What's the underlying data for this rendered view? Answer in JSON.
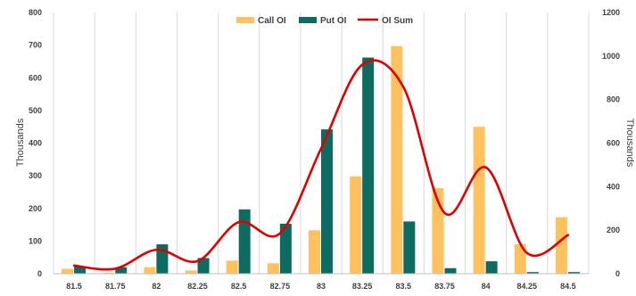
{
  "chart_data": {
    "type": "bar",
    "categories": [
      "81.5",
      "81.75",
      "82",
      "82.25",
      "82.5",
      "82.75",
      "83",
      "83.25",
      "83.5",
      "83.75",
      "84",
      "84.25",
      "84.5"
    ],
    "series": [
      {
        "name": "Call OI",
        "type": "bar",
        "axis": "left",
        "color": "#FFC25E",
        "values": [
          15,
          3,
          20,
          10,
          40,
          32,
          133,
          298,
          697,
          262,
          450,
          90,
          173
        ]
      },
      {
        "name": "Put OI",
        "type": "bar",
        "axis": "left",
        "color": "#0E6B62",
        "values": [
          22,
          20,
          90,
          48,
          197,
          153,
          442,
          662,
          160,
          17,
          38,
          5,
          5
        ]
      },
      {
        "name": "OI Sum",
        "type": "line",
        "axis": "right",
        "color": "#E00000",
        "smooth": true,
        "values": [
          37,
          23,
          110,
          58,
          237,
          185,
          575,
          960,
          857,
          279,
          488,
          95,
          178
        ]
      }
    ],
    "ylabel": "Thousands",
    "ylabel_right": "Thousands",
    "ylim": [
      0,
      800
    ],
    "ylim_right": [
      0,
      1200
    ],
    "yticks": [
      "0",
      "100",
      "200",
      "300",
      "400",
      "500",
      "600",
      "700",
      "800"
    ],
    "yticks_right": [
      "0",
      "200",
      "400",
      "600",
      "800",
      "1000",
      "1200"
    ],
    "grid": "vertical",
    "legend_position": "top-center"
  }
}
